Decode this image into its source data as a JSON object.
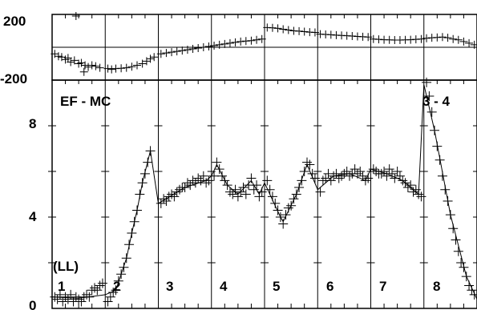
{
  "chart_data": {
    "type": "scatter",
    "layout": "two stacked panels sharing x, 8 vertical sub-panels",
    "top_panel": {
      "ylim": [
        -200,
        200
      ],
      "yticks": [
        "200",
        "-200"
      ],
      "hline_at": 0
    },
    "bottom_panel": {
      "ylim": [
        0,
        10
      ],
      "yticks": [
        "8",
        "4",
        "0"
      ],
      "annotation_left": "EF - MC",
      "annotation_right": "3 - 4",
      "label_ll": "(LL)"
    },
    "panels": [
      "1",
      "2",
      "3",
      "4",
      "5",
      "6",
      "7",
      "8"
    ],
    "xlim": [
      0,
      8
    ],
    "residuals": [
      [
        0.05,
        -40
      ],
      [
        0.12,
        -55
      ],
      [
        0.18,
        -60
      ],
      [
        0.25,
        -75
      ],
      [
        0.3,
        -65
      ],
      [
        0.35,
        -90
      ],
      [
        0.42,
        -80
      ],
      [
        0.5,
        -100
      ],
      [
        0.55,
        -95
      ],
      [
        0.62,
        -110
      ],
      [
        0.68,
        -120
      ],
      [
        0.75,
        -110
      ],
      [
        0.82,
        -115
      ],
      [
        0.9,
        -125
      ],
      [
        0.45,
        190
      ],
      [
        0.6,
        -150
      ],
      [
        1.05,
        -130
      ],
      [
        1.12,
        -135
      ],
      [
        1.2,
        -130
      ],
      [
        1.3,
        -128
      ],
      [
        1.4,
        -125
      ],
      [
        1.5,
        -118
      ],
      [
        1.6,
        -110
      ],
      [
        1.7,
        -100
      ],
      [
        1.78,
        -85
      ],
      [
        1.85,
        -70
      ],
      [
        1.92,
        -60
      ],
      [
        2.05,
        -40
      ],
      [
        2.15,
        -35
      ],
      [
        2.25,
        -30
      ],
      [
        2.35,
        -25
      ],
      [
        2.45,
        -20
      ],
      [
        2.55,
        -15
      ],
      [
        2.65,
        -10
      ],
      [
        2.75,
        -5
      ],
      [
        2.85,
        0
      ],
      [
        2.95,
        5
      ],
      [
        3.05,
        10
      ],
      [
        3.15,
        15
      ],
      [
        3.25,
        20
      ],
      [
        3.35,
        25
      ],
      [
        3.45,
        30
      ],
      [
        3.55,
        35
      ],
      [
        3.65,
        38
      ],
      [
        3.75,
        40
      ],
      [
        3.85,
        45
      ],
      [
        3.95,
        50
      ],
      [
        4.05,
        120
      ],
      [
        4.15,
        118
      ],
      [
        4.25,
        115
      ],
      [
        4.35,
        110
      ],
      [
        4.45,
        105
      ],
      [
        4.55,
        100
      ],
      [
        4.65,
        98
      ],
      [
        4.75,
        95
      ],
      [
        4.85,
        92
      ],
      [
        4.95,
        90
      ],
      [
        5.05,
        80
      ],
      [
        5.15,
        78
      ],
      [
        5.25,
        76
      ],
      [
        5.35,
        74
      ],
      [
        5.45,
        72
      ],
      [
        5.55,
        70
      ],
      [
        5.65,
        68
      ],
      [
        5.75,
        66
      ],
      [
        5.85,
        64
      ],
      [
        5.95,
        62
      ],
      [
        6.05,
        50
      ],
      [
        6.15,
        48
      ],
      [
        6.25,
        46
      ],
      [
        6.35,
        45
      ],
      [
        6.45,
        44
      ],
      [
        6.55,
        44
      ],
      [
        6.65,
        45
      ],
      [
        6.75,
        46
      ],
      [
        6.85,
        48
      ],
      [
        6.95,
        50
      ],
      [
        7.05,
        55
      ],
      [
        7.15,
        58
      ],
      [
        7.25,
        60
      ],
      [
        7.35,
        62
      ],
      [
        7.45,
        58
      ],
      [
        7.55,
        50
      ],
      [
        7.65,
        45
      ],
      [
        7.75,
        35
      ],
      [
        7.85,
        25
      ],
      [
        7.95,
        15
      ]
    ],
    "data_points": [
      [
        0.05,
        0.5
      ],
      [
        0.1,
        0.4
      ],
      [
        0.15,
        0.6
      ],
      [
        0.2,
        0.3
      ],
      [
        0.25,
        0.5
      ],
      [
        0.3,
        0.4
      ],
      [
        0.35,
        0.6
      ],
      [
        0.4,
        0.3
      ],
      [
        0.45,
        0.5
      ],
      [
        0.5,
        0.4
      ],
      [
        0.55,
        0.3
      ],
      [
        0.6,
        0.5
      ],
      [
        0.65,
        0.6
      ],
      [
        0.7,
        0.5
      ],
      [
        0.75,
        0.8
      ],
      [
        0.8,
        0.9
      ],
      [
        0.85,
        0.8
      ],
      [
        0.9,
        1.0
      ],
      [
        0.95,
        1.1
      ],
      [
        1.05,
        0.3
      ],
      [
        1.1,
        0.5
      ],
      [
        1.15,
        0.7
      ],
      [
        1.2,
        0.8
      ],
      [
        1.25,
        1.2
      ],
      [
        1.3,
        1.5
      ],
      [
        1.35,
        1.8
      ],
      [
        1.4,
        2.2
      ],
      [
        1.45,
        2.8
      ],
      [
        1.5,
        3.3
      ],
      [
        1.55,
        3.8
      ],
      [
        1.6,
        4.3
      ],
      [
        1.65,
        5.0
      ],
      [
        1.7,
        5.5
      ],
      [
        1.75,
        5.9
      ],
      [
        1.8,
        6.4
      ],
      [
        1.85,
        6.9
      ],
      [
        2.05,
        4.6
      ],
      [
        2.1,
        4.8
      ],
      [
        2.15,
        4.7
      ],
      [
        2.2,
        4.9
      ],
      [
        2.25,
        5.0
      ],
      [
        2.3,
        4.9
      ],
      [
        2.35,
        5.1
      ],
      [
        2.4,
        5.2
      ],
      [
        2.45,
        5.3
      ],
      [
        2.5,
        5.3
      ],
      [
        2.55,
        5.5
      ],
      [
        2.6,
        5.4
      ],
      [
        2.65,
        5.6
      ],
      [
        2.7,
        5.5
      ],
      [
        2.75,
        5.7
      ],
      [
        2.8,
        5.6
      ],
      [
        2.85,
        5.8
      ],
      [
        2.9,
        5.5
      ],
      [
        2.95,
        5.6
      ],
      [
        3.05,
        5.8
      ],
      [
        3.1,
        6.4
      ],
      [
        3.15,
        6.1
      ],
      [
        3.2,
        5.8
      ],
      [
        3.25,
        5.6
      ],
      [
        3.3,
        5.4
      ],
      [
        3.35,
        5.1
      ],
      [
        3.4,
        5.0
      ],
      [
        3.45,
        5.2
      ],
      [
        3.5,
        4.9
      ],
      [
        3.55,
        5.1
      ],
      [
        3.6,
        5.3
      ],
      [
        3.65,
        5.0
      ],
      [
        3.7,
        5.4
      ],
      [
        3.75,
        5.7
      ],
      [
        3.8,
        5.2
      ],
      [
        3.85,
        5.4
      ],
      [
        3.9,
        4.9
      ],
      [
        3.95,
        5.1
      ],
      [
        4.05,
        5.6
      ],
      [
        4.1,
        5.2
      ],
      [
        4.15,
        4.9
      ],
      [
        4.2,
        4.6
      ],
      [
        4.25,
        4.3
      ],
      [
        4.3,
        4.0
      ],
      [
        4.35,
        3.7
      ],
      [
        4.4,
        4.1
      ],
      [
        4.45,
        4.4
      ],
      [
        4.5,
        4.5
      ],
      [
        4.55,
        4.8
      ],
      [
        4.6,
        5.0
      ],
      [
        4.65,
        5.3
      ],
      [
        4.7,
        5.6
      ],
      [
        4.75,
        6.0
      ],
      [
        4.8,
        6.4
      ],
      [
        4.85,
        6.3
      ],
      [
        4.9,
        5.9
      ],
      [
        4.95,
        5.7
      ],
      [
        5.05,
        5.1
      ],
      [
        5.1,
        5.6
      ],
      [
        5.15,
        5.7
      ],
      [
        5.2,
        5.9
      ],
      [
        5.25,
        5.6
      ],
      [
        5.3,
        5.8
      ],
      [
        5.35,
        5.9
      ],
      [
        5.4,
        5.7
      ],
      [
        5.45,
        5.8
      ],
      [
        5.5,
        5.9
      ],
      [
        5.55,
        6.0
      ],
      [
        5.6,
        5.8
      ],
      [
        5.65,
        5.9
      ],
      [
        5.7,
        6.1
      ],
      [
        5.75,
        5.9
      ],
      [
        5.8,
        6.0
      ],
      [
        5.85,
        5.8
      ],
      [
        5.9,
        5.6
      ],
      [
        5.95,
        5.7
      ],
      [
        6.05,
        6.1
      ],
      [
        6.1,
        6.0
      ],
      [
        6.15,
        5.9
      ],
      [
        6.2,
        5.9
      ],
      [
        6.25,
        6.0
      ],
      [
        6.3,
        5.8
      ],
      [
        6.35,
        6.1
      ],
      [
        6.4,
        5.9
      ],
      [
        6.45,
        5.7
      ],
      [
        6.5,
        6.0
      ],
      [
        6.55,
        5.8
      ],
      [
        6.6,
        5.6
      ],
      [
        6.65,
        5.5
      ],
      [
        6.7,
        5.3
      ],
      [
        6.75,
        5.4
      ],
      [
        6.8,
        5.1
      ],
      [
        6.85,
        5.2
      ],
      [
        6.9,
        5.0
      ],
      [
        6.95,
        4.9
      ],
      [
        7.05,
        9.9
      ],
      [
        7.1,
        9.3
      ],
      [
        7.15,
        8.6
      ],
      [
        7.2,
        7.8
      ],
      [
        7.25,
        7.1
      ],
      [
        7.3,
        6.5
      ],
      [
        7.35,
        5.8
      ],
      [
        7.4,
        5.2
      ],
      [
        7.45,
        4.7
      ],
      [
        7.5,
        4.1
      ],
      [
        7.55,
        3.5
      ],
      [
        7.6,
        3.0
      ],
      [
        7.65,
        2.5
      ],
      [
        7.7,
        2.0
      ],
      [
        7.75,
        1.8
      ],
      [
        7.8,
        1.4
      ],
      [
        7.85,
        1.0
      ],
      [
        7.9,
        0.8
      ],
      [
        7.95,
        0.6
      ]
    ],
    "fit_line": [
      [
        0.0,
        0.5
      ],
      [
        0.5,
        0.45
      ],
      [
        1.0,
        0.6
      ],
      [
        1.2,
        0.8
      ],
      [
        1.4,
        2.2
      ],
      [
        1.5,
        3.3
      ],
      [
        1.6,
        4.3
      ],
      [
        1.7,
        5.5
      ],
      [
        1.85,
        6.9
      ],
      [
        2.0,
        4.6
      ],
      [
        2.5,
        5.3
      ],
      [
        2.9,
        5.6
      ],
      [
        3.0,
        5.8
      ],
      [
        3.1,
        6.3
      ],
      [
        3.3,
        5.4
      ],
      [
        3.5,
        5.0
      ],
      [
        3.75,
        5.6
      ],
      [
        3.9,
        5.0
      ],
      [
        4.0,
        5.5
      ],
      [
        4.3,
        4.0
      ],
      [
        4.35,
        3.8
      ],
      [
        4.6,
        5.0
      ],
      [
        4.8,
        6.3
      ],
      [
        5.0,
        5.2
      ],
      [
        5.3,
        5.8
      ],
      [
        5.6,
        5.9
      ],
      [
        5.9,
        5.6
      ],
      [
        6.0,
        6.1
      ],
      [
        6.3,
        5.9
      ],
      [
        6.6,
        5.6
      ],
      [
        6.9,
        5.0
      ],
      [
        7.0,
        9.8
      ],
      [
        7.2,
        7.8
      ],
      [
        7.5,
        4.1
      ],
      [
        7.8,
        1.4
      ],
      [
        8.0,
        0.4
      ]
    ]
  }
}
